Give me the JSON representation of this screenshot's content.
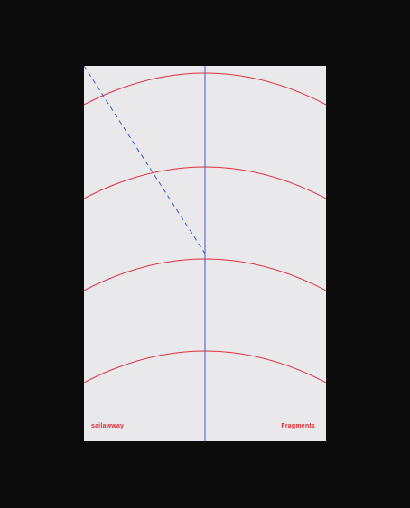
{
  "poster": {
    "brand_left": "sailawway",
    "brand_right": "Fragments"
  },
  "colors": {
    "background": "#0b0b0b",
    "paper": "#e9e9eb",
    "arc_red": "#e0303f",
    "line_blue": "#3d57c7",
    "text_red": "#e02a36"
  }
}
